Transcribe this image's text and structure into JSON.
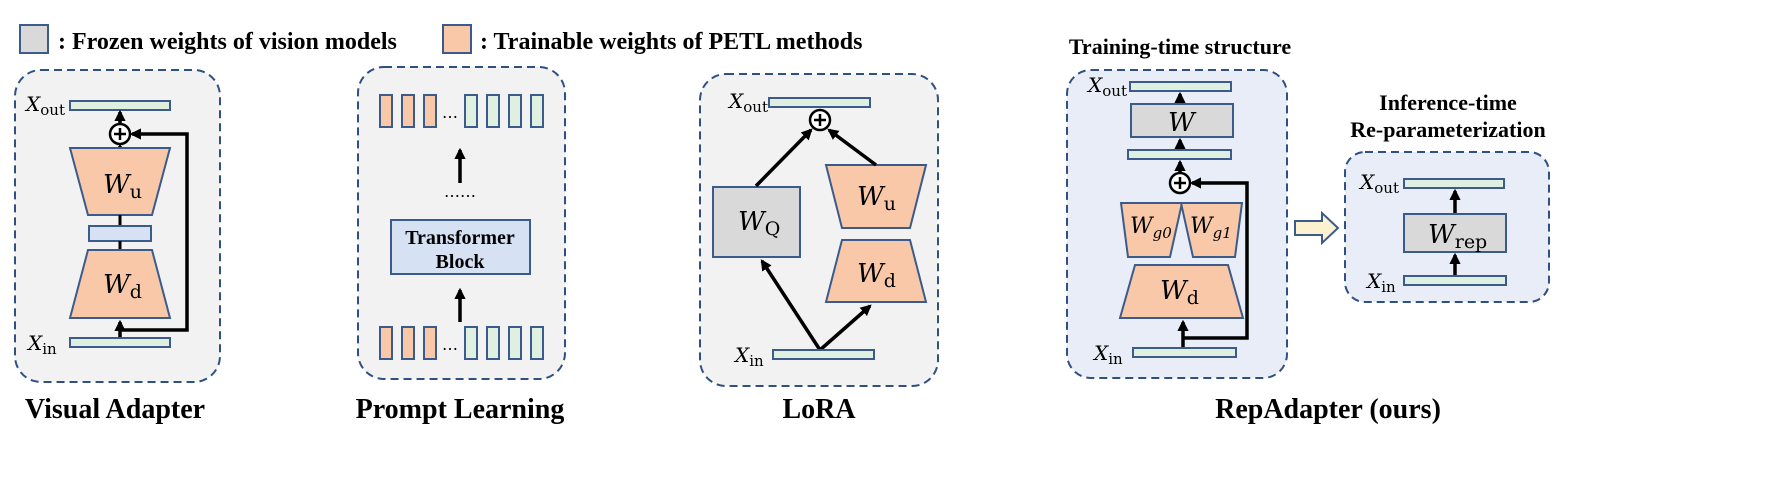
{
  "legend": {
    "frozen_label": ": Frozen weights  of vision models",
    "trainable_label": ": Trainable weights  of PETL methods",
    "frozen_color": "#d9d9d9",
    "trainable_color": "#f8c8a8"
  },
  "panels": {
    "visual_adapter": {
      "title": "Visual Adapter",
      "x_out": "X",
      "x_out_sub": "out",
      "x_in": "X",
      "x_in_sub": "in",
      "w_u": "W",
      "w_u_sub": "u",
      "w_d": "W",
      "w_d_sub": "d"
    },
    "prompt_learning": {
      "title": "Prompt Learning",
      "dots_top": "……",
      "ellipsis": "…",
      "block_line1": "Transformer",
      "block_line2": "Block"
    },
    "lora": {
      "title": "LoRA",
      "x_out": "X",
      "x_out_sub": "out",
      "x_in": "X",
      "x_in_sub": "in",
      "w_q": "W",
      "w_q_sub": "Q",
      "w_u": "W",
      "w_u_sub": "u",
      "w_d": "W",
      "w_d_sub": "d"
    },
    "repadapter": {
      "title": "RepAdapter (ours)",
      "training_title": "Training-time structure",
      "inference_title_line1": "Inference-time",
      "inference_title_line2": "Re-parameterization",
      "x_out": "X",
      "x_out_sub": "out",
      "x_in": "X",
      "x_in_sub": "in",
      "w": "W",
      "w_g0": "W",
      "w_g0_sub": "g0",
      "w_g1": "W",
      "w_g1_sub": "g1",
      "w_d": "W",
      "w_d_sub": "d",
      "inf_x_out": "X",
      "inf_x_out_sub": "out",
      "inf_x_in": "X",
      "inf_x_in_sub": "in",
      "w_rep": "W",
      "w_rep_sub": "rep"
    }
  }
}
